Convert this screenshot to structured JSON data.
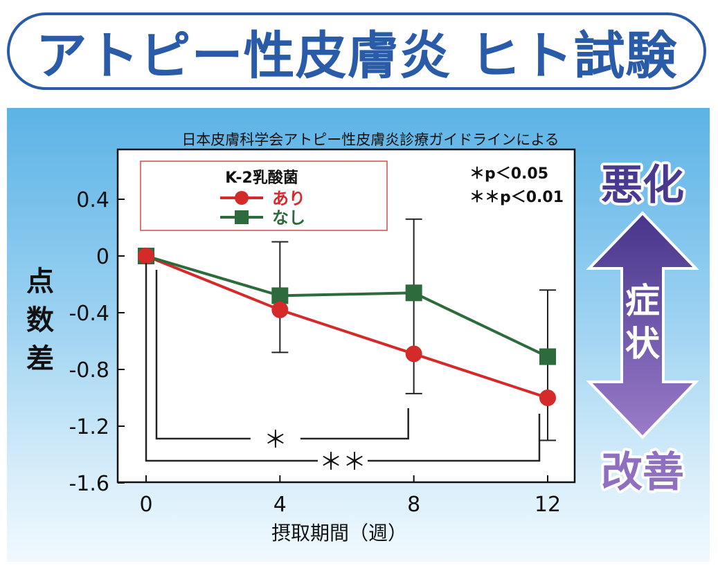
{
  "header": {
    "title": "アトピー性皮膚炎 ヒト試験"
  },
  "chart_note": "日本皮膚科学会アトピー性皮膚炎診療ガイドラインによる",
  "legend": {
    "title": "K-2乳酸菌"
  },
  "significance_notes": [
    "＊p＜0.05",
    "＊＊p＜0.01"
  ],
  "brackets": [
    {
      "from": 0,
      "to": 8,
      "label": "＊"
    },
    {
      "from": 0,
      "to": 12,
      "label": "＊＊"
    }
  ],
  "side_labels": {
    "top": "悪化",
    "middle": "症状",
    "bottom": "改善"
  },
  "colors": {
    "title": "#2a5ba8",
    "ari": "#d42a2a",
    "nashi": "#2d6b3c",
    "arrow_top": "#4a3a8f",
    "arrow_bottom": "#8e6fc0"
  },
  "chart_data": {
    "type": "line",
    "title": "",
    "xlabel": "摂取期間（週）",
    "ylabel": "点数差",
    "x": [
      0,
      4,
      8,
      12
    ],
    "x_ticks": [
      "0",
      "4",
      "8",
      "12"
    ],
    "y_ticks": [
      "0.4",
      "0",
      "-0.4",
      "-0.8",
      "-1.2",
      "-1.6"
    ],
    "y_tick_values": [
      0.4,
      0,
      -0.4,
      -0.8,
      -1.2,
      -1.6
    ],
    "ylim": [
      -1.6,
      0.8
    ],
    "xlim": [
      -1,
      13
    ],
    "grid": false,
    "legend_position": "top-left",
    "series": [
      {
        "name": "あり",
        "marker": "circle",
        "values": [
          0,
          -0.38,
          -0.69,
          -1.0
        ],
        "error_upper": [
          0,
          -0.38,
          -0.69,
          -1.0
        ],
        "error_lower": [
          0,
          -0.38,
          -0.69,
          -1.0
        ]
      },
      {
        "name": "なし",
        "marker": "square",
        "values": [
          0,
          -0.28,
          -0.26,
          -0.71
        ],
        "error_upper": [
          0,
          0.1,
          0.26,
          -0.24
        ],
        "error_lower": [
          0,
          -0.68,
          -0.97,
          -1.3
        ]
      }
    ],
    "error_bars_ari": {
      "upper": [
        0,
        -0.38,
        -0.69,
        -1.0
      ],
      "lower": [
        0,
        -0.68,
        -0.97,
        -1.3
      ]
    }
  }
}
